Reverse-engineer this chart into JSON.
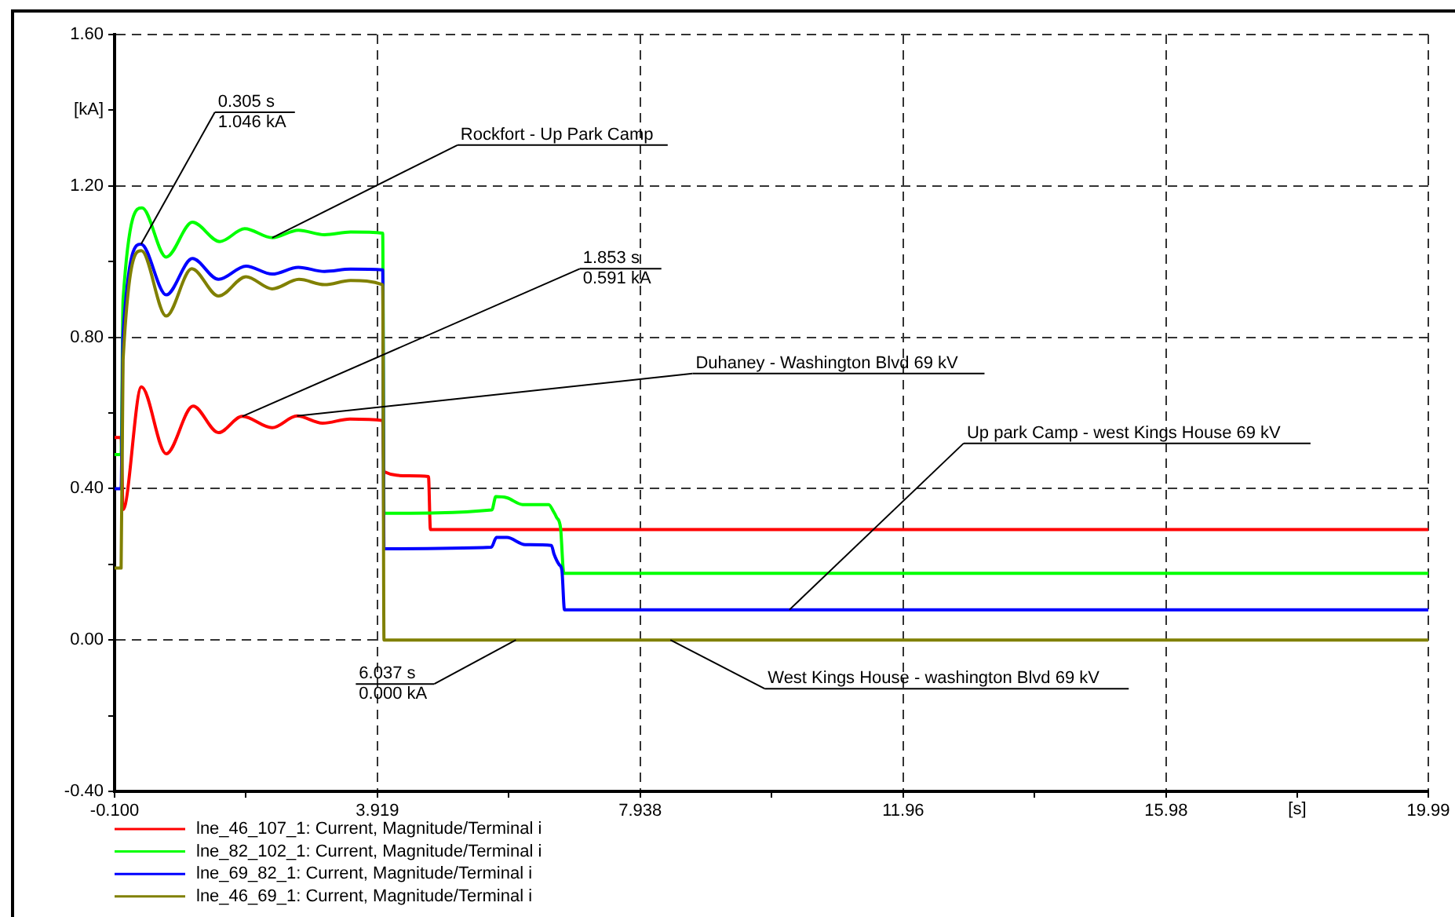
{
  "chart_data": {
    "type": "line",
    "xlabel": "[s]",
    "ylabel": "[kA]",
    "xlim": [
      -0.1,
      19.99
    ],
    "xticks": [
      {
        "value": -0.1,
        "label": "-0.100"
      },
      {
        "value": 1.91,
        "label": null
      },
      3.919,
      {
        "value": 5.93,
        "label": null
      },
      7.938,
      {
        "value": 9.95,
        "label": null
      },
      11.96,
      {
        "value": 13.97,
        "label": null
      },
      15.98,
      {
        "value": 17.98,
        "label": null
      },
      19.99
    ],
    "ylim": [
      -0.4,
      1.6
    ],
    "yticks": [
      {
        "value": -0.4,
        "label": "-0.40"
      },
      {
        "value": -0.2,
        "label": null
      },
      {
        "value": 0,
        "label": "0.00"
      },
      {
        "value": 0.2,
        "label": null
      },
      {
        "value": 0.4,
        "label": "0.40"
      },
      {
        "value": 0.6,
        "label": null
      },
      {
        "value": 0.8,
        "label": "0.80"
      },
      {
        "value": 1,
        "label": null
      },
      {
        "value": 1.2,
        "label": "1.20"
      },
      {
        "value": 1.4,
        "label": null
      },
      {
        "value": 1.6,
        "label": "1.60"
      }
    ],
    "grid": true,
    "legend": "bottom left",
    "series": [
      {
        "name": "lne_46_107_1: Current, Magnitude/Terminal i",
        "color": "#ff0000",
        "x": [
          -0.1,
          0,
          0.03,
          0.31,
          0.69,
          1.1,
          1.49,
          1.853,
          2.31,
          2.69,
          3.08,
          3.5,
          4.0,
          4.02,
          4.4,
          4.7,
          4.73,
          19.99
        ],
        "values": [
          0.535,
          0.535,
          0.345,
          0.669,
          0.492,
          0.618,
          0.548,
          0.591,
          0.561,
          0.592,
          0.573,
          0.584,
          0.58,
          0.445,
          0.434,
          0.432,
          0.292,
          0.292
        ]
      },
      {
        "name": "lne_82_102_1: Current, Magnitude/Terminal i",
        "color": "#00ff00",
        "x": [
          -0.1,
          0,
          0.03,
          0.32,
          0.69,
          1.09,
          1.51,
          1.89,
          2.31,
          2.71,
          3.11,
          3.51,
          4.0,
          4.02,
          5.67,
          5.73,
          5.9,
          6.14,
          6.54,
          6.61,
          6.66,
          6.72,
          6.77,
          19.99
        ],
        "values": [
          0.49,
          0.49,
          0.9,
          1.142,
          1.012,
          1.104,
          1.053,
          1.087,
          1.063,
          1.083,
          1.071,
          1.078,
          1.075,
          0.335,
          0.344,
          0.379,
          0.376,
          0.358,
          0.358,
          0.34,
          0.324,
          0.296,
          0.176,
          0.176
        ]
      },
      {
        "name": "lne_69_82_1: Current, Magnitude/Terminal i",
        "color": "#0000ff",
        "x": [
          -0.1,
          0,
          0.03,
          0.305,
          0.69,
          1.09,
          1.49,
          1.91,
          2.31,
          2.71,
          3.11,
          3.51,
          4.0,
          4.02,
          5.66,
          5.74,
          5.9,
          6.18,
          6.58,
          6.62,
          6.7,
          6.74,
          6.78,
          19.99
        ],
        "values": [
          0.4,
          0.4,
          0.808,
          1.046,
          0.912,
          1.008,
          0.953,
          0.988,
          0.967,
          0.985,
          0.974,
          0.98,
          0.978,
          0.241,
          0.245,
          0.271,
          0.271,
          0.252,
          0.25,
          0.227,
          0.199,
          0.185,
          0.08,
          0.08
        ]
      },
      {
        "name": "lne_46_69_1: Current, Magnitude/Terminal i",
        "color": "#808000",
        "x": [
          -0.1,
          0,
          0.03,
          0.31,
          0.69,
          1.08,
          1.49,
          1.91,
          2.31,
          2.72,
          3.11,
          3.51,
          4.0,
          4.02,
          19.99
        ],
        "values": [
          0.19,
          0.19,
          0.74,
          1.029,
          0.856,
          0.981,
          0.909,
          0.96,
          0.928,
          0.953,
          0.939,
          0.95,
          0.939,
          0,
          0
        ]
      }
    ],
    "annotations": [
      {
        "text": "0.305 s",
        "x": 0.305,
        "y": 1.046
      },
      {
        "text": "1.046 kA",
        "x": 0.305,
        "y": 1.046
      },
      {
        "text": "Rockfort - Up Park Camp",
        "x": 2.31,
        "y": 1.063
      },
      {
        "text": "1.853 s",
        "x": 1.853,
        "y": 0.591
      },
      {
        "text": "0.591 kA",
        "x": 1.853,
        "y": 0.591
      },
      {
        "text": "Duhaney - Washington Blvd 69 kV",
        "x": 2.69,
        "y": 0.592
      },
      {
        "text": "Up park Camp - west Kings House 69 kV",
        "x": 10.22,
        "y": 0.08
      },
      {
        "text": "6.037 s",
        "x": 6.037,
        "y": 0
      },
      {
        "text": "0.000 kA",
        "x": 6.037,
        "y": 0
      },
      {
        "text": "West Kings House - washington Blvd 69 kV",
        "x": 8.4,
        "y": 0
      }
    ]
  }
}
